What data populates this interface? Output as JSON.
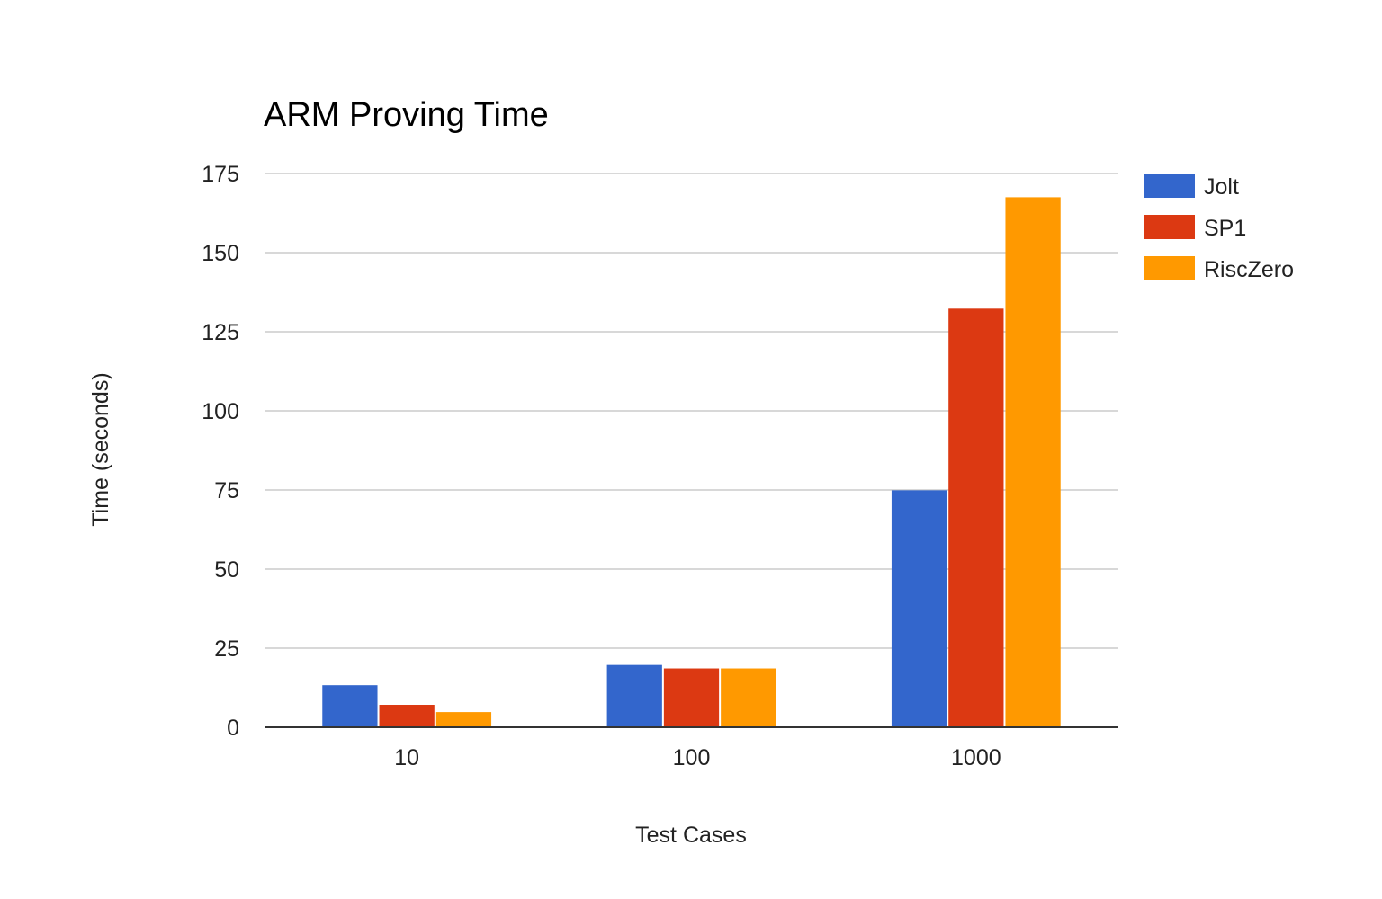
{
  "chart_data": {
    "type": "bar",
    "title": "ARM Proving Time",
    "xlabel": "Test Cases",
    "ylabel": "Time (seconds)",
    "categories": [
      "10",
      "100",
      "1000"
    ],
    "series": [
      {
        "name": "Jolt",
        "color": "#3366cc",
        "values": [
          13.3,
          19.7,
          74.9
        ]
      },
      {
        "name": "SP1",
        "color": "#dc3912",
        "values": [
          7.1,
          18.6,
          132.3
        ]
      },
      {
        "name": "RiscZero",
        "color": "#ff9900",
        "values": [
          4.8,
          18.6,
          167.5
        ]
      }
    ],
    "ylim": [
      0,
      175
    ],
    "yticks": [
      0,
      25,
      50,
      75,
      100,
      125,
      150,
      175
    ],
    "grid": true,
    "legend": "right"
  }
}
